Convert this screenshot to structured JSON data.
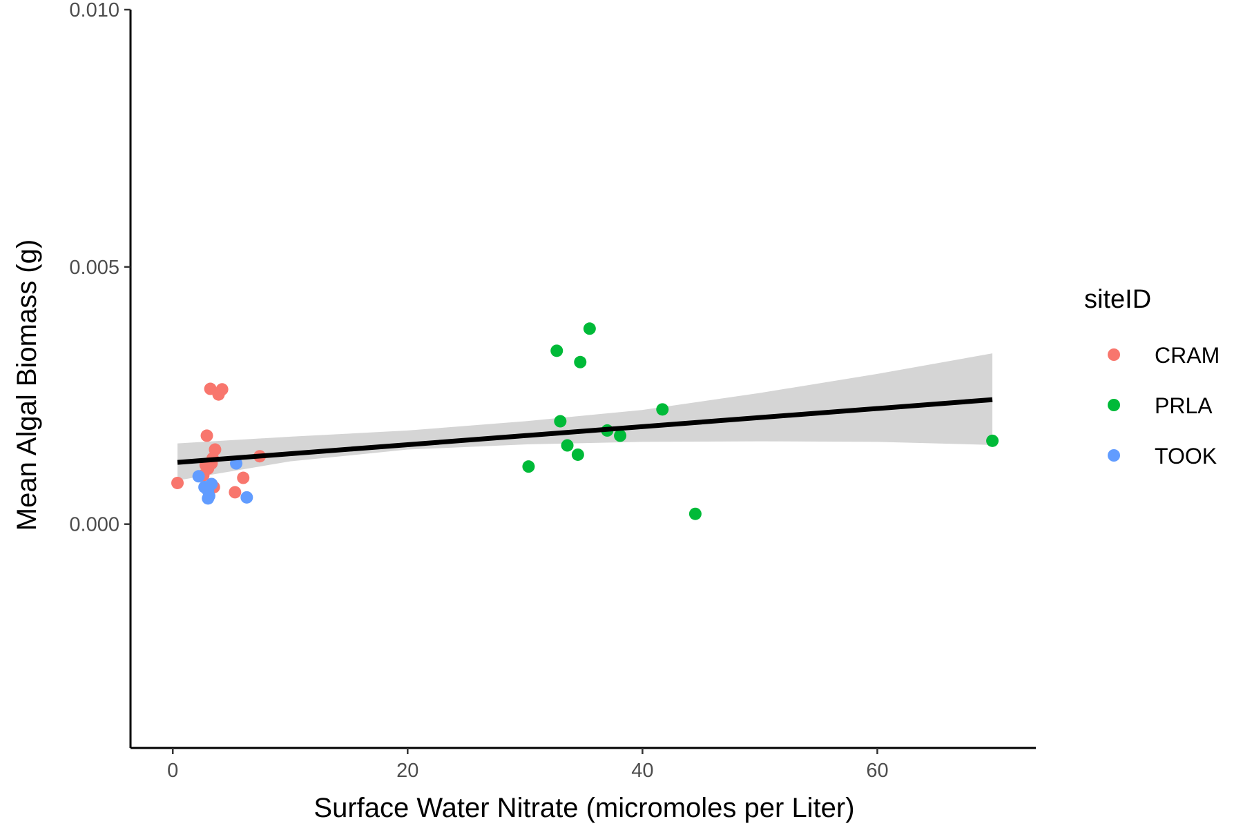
{
  "chart_data": {
    "type": "scatter",
    "title": "",
    "xlabel": "Surface Water Nitrate (micromoles per Liter)",
    "ylabel": "Mean Algal Biomass (g)",
    "xlim": [
      -3.6,
      73.5
    ],
    "ylim": [
      -0.00435,
      0.01
    ],
    "x_ticks": [
      0,
      20,
      40,
      60
    ],
    "x_tick_labels": [
      "0",
      "20",
      "40",
      "60"
    ],
    "y_ticks": [
      0,
      0.005,
      0.01
    ],
    "y_tick_labels": [
      "0.000",
      "0.005",
      "0.010"
    ],
    "grid": false,
    "legend": {
      "title": "siteID",
      "position": "right"
    },
    "series": [
      {
        "name": "CRAM",
        "color": "#F8766D",
        "points": [
          {
            "x": 0.4,
            "y": 0.0008
          },
          {
            "x": 2.9,
            "y": 0.00172
          },
          {
            "x": 3.2,
            "y": 0.00263
          },
          {
            "x": 3.9,
            "y": 0.00252
          },
          {
            "x": 4.2,
            "y": 0.00262
          },
          {
            "x": 3.6,
            "y": 0.00145
          },
          {
            "x": 3.4,
            "y": 0.00128
          },
          {
            "x": 2.8,
            "y": 0.00115
          },
          {
            "x": 3.0,
            "y": 0.00108
          },
          {
            "x": 3.3,
            "y": 0.00118
          },
          {
            "x": 7.4,
            "y": 0.00132
          },
          {
            "x": 6.0,
            "y": 0.0009
          },
          {
            "x": 5.3,
            "y": 0.00062
          },
          {
            "x": 3.5,
            "y": 0.00072
          },
          {
            "x": 2.6,
            "y": 0.00095
          }
        ]
      },
      {
        "name": "PRLA",
        "color": "#00BA38",
        "points": [
          {
            "x": 35.5,
            "y": 0.0038
          },
          {
            "x": 32.7,
            "y": 0.00337
          },
          {
            "x": 34.7,
            "y": 0.00315
          },
          {
            "x": 41.7,
            "y": 0.00223
          },
          {
            "x": 33.0,
            "y": 0.002
          },
          {
            "x": 37.0,
            "y": 0.00182
          },
          {
            "x": 38.1,
            "y": 0.00172
          },
          {
            "x": 33.6,
            "y": 0.00153
          },
          {
            "x": 34.5,
            "y": 0.00135
          },
          {
            "x": 30.3,
            "y": 0.00112
          },
          {
            "x": 44.5,
            "y": 0.0002
          },
          {
            "x": 69.8,
            "y": 0.00162
          }
        ]
      },
      {
        "name": "TOOK",
        "color": "#619CFF",
        "points": [
          {
            "x": 2.2,
            "y": 0.00093
          },
          {
            "x": 2.7,
            "y": 0.00072
          },
          {
            "x": 3.0,
            "y": 0.00065
          },
          {
            "x": 3.3,
            "y": 0.00078
          },
          {
            "x": 3.0,
            "y": 0.0005
          },
          {
            "x": 3.1,
            "y": 0.00055
          },
          {
            "x": 5.4,
            "y": 0.00118
          },
          {
            "x": 6.3,
            "y": 0.00052
          }
        ]
      }
    ],
    "trend": {
      "color": "#000000",
      "band_color": "#D3D3D3",
      "line": [
        {
          "x": 0.4,
          "y": 0.0012
        },
        {
          "x": 69.8,
          "y": 0.00242
        }
      ],
      "band": [
        {
          "x": 0.4,
          "lower": 0.00085,
          "upper": 0.00157
        },
        {
          "x": 10,
          "lower": 0.00122,
          "upper": 0.0017
        },
        {
          "x": 20,
          "lower": 0.00145,
          "upper": 0.00182
        },
        {
          "x": 30,
          "lower": 0.00155,
          "upper": 0.002
        },
        {
          "x": 40,
          "lower": 0.0016,
          "upper": 0.00222
        },
        {
          "x": 50,
          "lower": 0.00161,
          "upper": 0.00255
        },
        {
          "x": 60,
          "lower": 0.0016,
          "upper": 0.00292
        },
        {
          "x": 69.8,
          "lower": 0.00154,
          "upper": 0.00332
        }
      ]
    }
  }
}
